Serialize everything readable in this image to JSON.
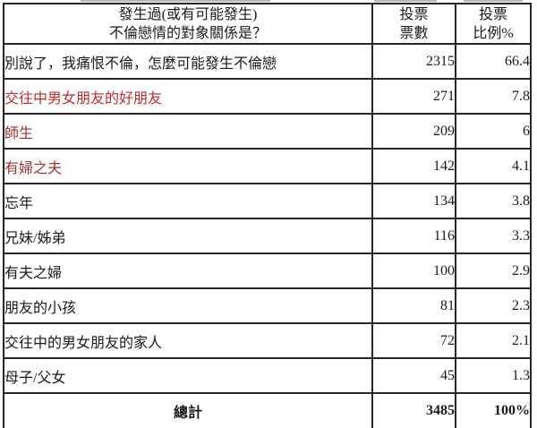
{
  "colors": {
    "text": "#1a1a1a",
    "border": "#262626",
    "highlight_red": "#c22b2b",
    "highlight_maroon": "#9e3232",
    "background": "#ffffff"
  },
  "table": {
    "header": {
      "question_line1": "發生過(或有可能發生)",
      "question_line2": "不倫戀情的對象關係是？",
      "votes_line1": "投票",
      "votes_line2": "票數",
      "percent_line1": "投票",
      "percent_line2": "比例%"
    },
    "rows": [
      {
        "label": "別說了，我痛恨不倫，怎麼可能發生不倫戀",
        "votes": "2315",
        "percent": "66.4",
        "color": "#1a1a1a"
      },
      {
        "label": "交往中男女朋友的好朋友",
        "votes": "271",
        "percent": "7.8",
        "color": "#c22b2b"
      },
      {
        "label": "師生",
        "votes": "209",
        "percent": "6",
        "color": "#9e3232"
      },
      {
        "label": "有婦之夫",
        "votes": "142",
        "percent": "4.1",
        "color": "#9e3232"
      },
      {
        "label": "忘年",
        "votes": "134",
        "percent": "3.8",
        "color": "#1a1a1a"
      },
      {
        "label": "兄妹/姊弟",
        "votes": "116",
        "percent": "3.3",
        "color": "#1a1a1a"
      },
      {
        "label": "有夫之婦",
        "votes": "100",
        "percent": "2.9",
        "color": "#1a1a1a"
      },
      {
        "label": "朋友的小孩",
        "votes": "81",
        "percent": "2.3",
        "color": "#1a1a1a"
      },
      {
        "label": "交往中的男女朋友的家人",
        "votes": "72",
        "percent": "2.1",
        "color": "#1a1a1a"
      },
      {
        "label": "母子/父女",
        "votes": "45",
        "percent": "1.3",
        "color": "#1a1a1a"
      }
    ],
    "total": {
      "label": "總計",
      "votes": "3485",
      "percent": "100%"
    }
  },
  "chart_data": {
    "type": "table",
    "title": "發生過(或有可能發生)不倫戀情的對象關係是？",
    "columns": [
      "發生過(或有可能發生)不倫戀情的對象關係是？",
      "投票票數",
      "投票比例%"
    ],
    "rows": [
      [
        "別說了，我痛恨不倫，怎麼可能發生不倫戀",
        2315,
        66.4
      ],
      [
        "交往中男女朋友的好朋友",
        271,
        7.8
      ],
      [
        "師生",
        209,
        6
      ],
      [
        "有婦之夫",
        142,
        4.1
      ],
      [
        "忘年",
        134,
        3.8
      ],
      [
        "兄妹/姊弟",
        116,
        3.3
      ],
      [
        "有夫之婦",
        100,
        2.9
      ],
      [
        "朋友的小孩",
        81,
        2.3
      ],
      [
        "交往中的男女朋友的家人",
        72,
        2.1
      ],
      [
        "母子/父女",
        45,
        1.3
      ]
    ],
    "total_row": [
      "總計",
      3485,
      "100%"
    ],
    "highlighted_rows": [
      "交往中男女朋友的好朋友",
      "師生",
      "有婦之夫"
    ]
  }
}
